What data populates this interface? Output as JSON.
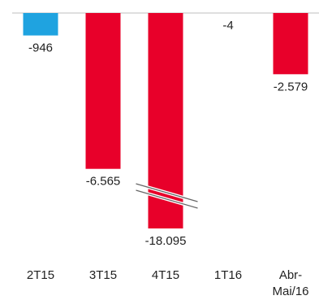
{
  "chart_data": {
    "type": "bar",
    "categories": [
      "2T15",
      "3T15",
      "4T15",
      "1T16",
      "Abr-Mai/16"
    ],
    "category_lines": [
      [
        "2T15"
      ],
      [
        "3T15"
      ],
      [
        "4T15"
      ],
      [
        "1T16"
      ],
      [
        "Abr-",
        "Mai/16"
      ]
    ],
    "values": [
      -946,
      -6565,
      -18095,
      -4,
      -2579
    ],
    "value_labels": [
      "-946",
      "-6.565",
      "-18.095",
      "-4",
      "-2.579"
    ],
    "bar_colors": [
      "#1fa3e0",
      "#e8002a",
      "#e8002a",
      "#e8002a",
      "#e8002a"
    ],
    "axis_break": {
      "category": "4T15",
      "note": "bar truncated with break marks"
    },
    "baseline": 0,
    "grid": false,
    "legend": "none"
  },
  "colors": {
    "positive_accent": "#1fa3e0",
    "negative": "#e8002a",
    "baseline": "#bfbfbf",
    "break_mark": "#666666"
  }
}
